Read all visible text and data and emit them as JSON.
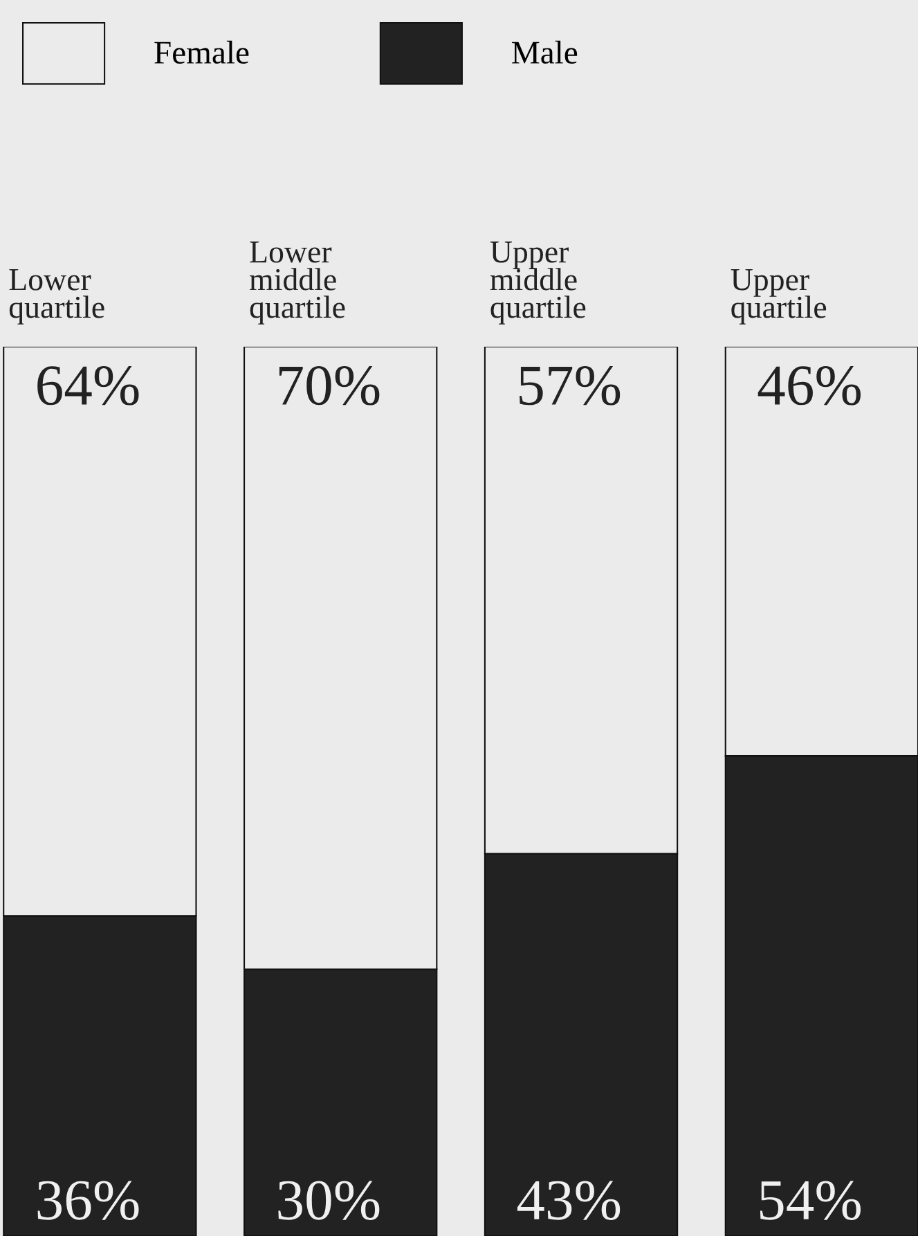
{
  "chart_data": {
    "type": "bar",
    "stacked": true,
    "categories": [
      "Lower quartile",
      "Lower middle quartile",
      "Upper middle quartile",
      "Upper quartile"
    ],
    "ylim": [
      0,
      100
    ],
    "legend": "top left",
    "series": [
      {
        "name": "Male",
        "color": "#222222",
        "values": [
          36,
          30,
          43,
          54
        ],
        "value_labels": [
          "36%",
          "30%",
          "43%",
          "54%"
        ]
      },
      {
        "name": "Female",
        "color": "#ebebeb",
        "values": [
          64,
          70,
          57,
          46
        ],
        "value_labels": [
          "64%",
          "70%",
          "57%",
          "46%"
        ]
      }
    ]
  }
}
